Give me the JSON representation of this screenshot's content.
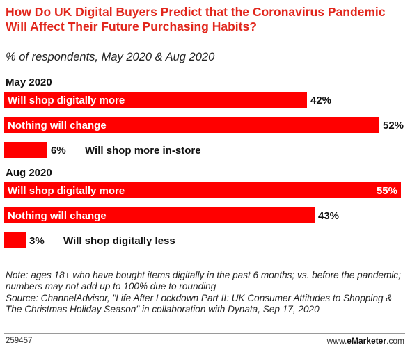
{
  "title": "How Do UK Digital Buyers Predict that the Coronavirus Pandemic Will Affect Their Future Purchasing Habits?",
  "subtitle": "% of respondents, May 2020 & Aug 2020",
  "note": "Note: ages 18+ who have bought items digitally in the past 6 months; vs. before the pandemic; numbers may not add up to 100% due to rounding",
  "source": "Source: ChannelAdvisor, \"Life After Lockdown Part II: UK Consumer Attitudes to Shopping & The Christmas Holiday Season\" in collaboration with Dynata, Sep 17, 2020",
  "footer": {
    "chart_id": "259457",
    "brand_prefix": "www.",
    "brand_name": "eMarketer",
    "brand_suffix": ".com"
  },
  "colors": {
    "accent": "#e1261c",
    "bar": "#ff0000",
    "text": "#111111"
  },
  "chart_data": [
    {
      "type": "bar",
      "orientation": "horizontal",
      "group": "May 2020",
      "categories": [
        "Will shop digitally more",
        "Nothing will change",
        "Will shop more in-store"
      ],
      "values": [
        42,
        52,
        6
      ],
      "value_labels": [
        "42%",
        "52%",
        "6%"
      ],
      "unit": "%",
      "xlim": [
        0,
        55
      ]
    },
    {
      "type": "bar",
      "orientation": "horizontal",
      "group": "Aug 2020",
      "categories": [
        "Will shop digitally more",
        "Nothing will change",
        "Will shop digitally less"
      ],
      "values": [
        55,
        43,
        3
      ],
      "value_labels": [
        "55%",
        "43%",
        "3%"
      ],
      "unit": "%",
      "xlim": [
        0,
        55
      ]
    }
  ]
}
